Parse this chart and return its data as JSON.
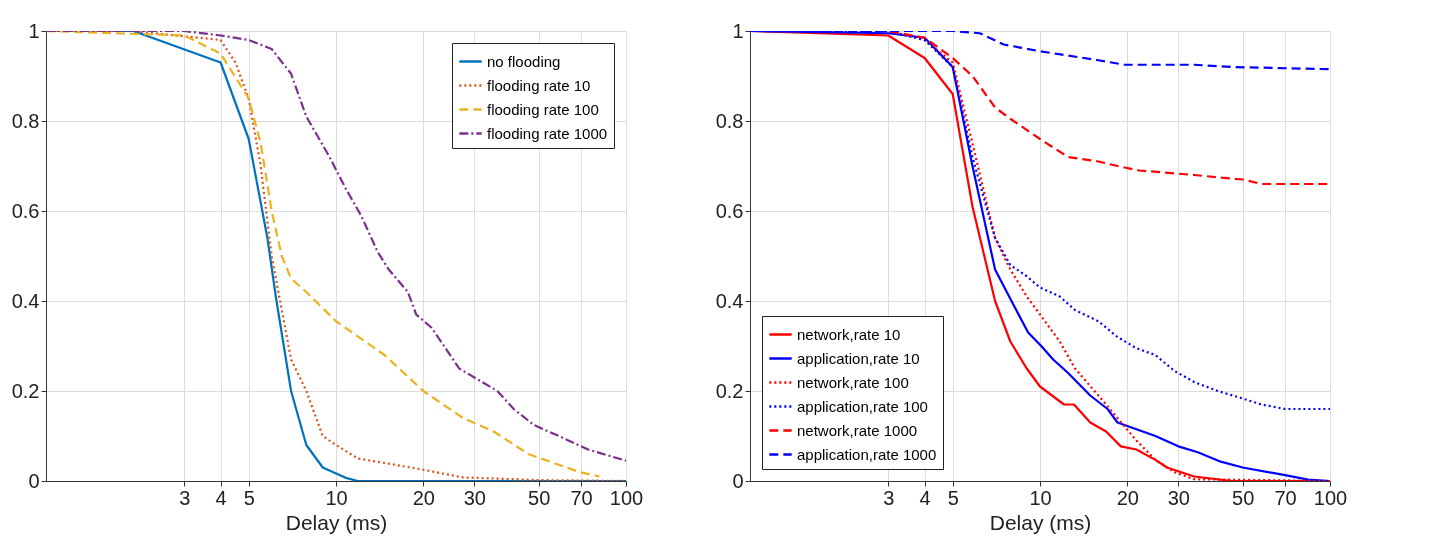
{
  "chart_data": [
    {
      "type": "line",
      "xlabel": "Delay (ms)",
      "log": "x",
      "xlim": [
        1,
        100
      ],
      "xticks": [
        3,
        4,
        5,
        10,
        20,
        30,
        50,
        70,
        100
      ],
      "ylim": [
        0,
        1
      ],
      "yticks": [
        0,
        0.2,
        0.4,
        0.6,
        0.8,
        1
      ],
      "grid": true,
      "legend": "top right",
      "series": [
        {
          "name": "no flooding",
          "color": "#0072bd",
          "line_style": "solid",
          "x": [
            1,
            2,
            4,
            5,
            5.8,
            6.2,
            7.0,
            7.9,
            9.0,
            10.8,
            11.9,
            14,
            100
          ],
          "values": [
            1,
            1,
            0.93,
            0.76,
            0.54,
            0.41,
            0.2,
            0.08,
            0.03,
            0.007,
            0,
            0,
            0
          ]
        },
        {
          "name": "flooding rate 10",
          "color": "#d95319",
          "line_style": "dotted",
          "x": [
            1,
            2,
            4,
            4.5,
            5,
            5.5,
            6,
            6.5,
            7,
            7.9,
            9.0,
            10,
            11.9,
            14.7,
            20,
            27.4,
            50,
            100
          ],
          "values": [
            1,
            1,
            0.98,
            0.93,
            0.85,
            0.7,
            0.5,
            0.38,
            0.27,
            0.2,
            0.1,
            0.08,
            0.05,
            0.04,
            0.025,
            0.008,
            0.002,
            0
          ]
        },
        {
          "name": "flooding rate 100",
          "color": "#edb120",
          "line_style": "dashed",
          "x": [
            1,
            3,
            4,
            5,
            5.5,
            6,
            6.5,
            7,
            7.9,
            10,
            14.7,
            20,
            27.4,
            35,
            46,
            69,
            81
          ],
          "values": [
            1,
            0.99,
            0.95,
            0.85,
            0.75,
            0.6,
            0.5,
            0.45,
            0.42,
            0.355,
            0.28,
            0.2,
            0.14,
            0.11,
            0.06,
            0.02,
            0.01
          ]
        },
        {
          "name": "flooding rate 1000",
          "color": "#7e2f8e",
          "line_style": "dashdot",
          "x": [
            1,
            3,
            4,
            5,
            6.0,
            7.0,
            7.9,
            9.5,
            10.8,
            12.2,
            13.9,
            15.2,
            17.7,
            18.9,
            21.4,
            26.6,
            30,
            36,
            41,
            48,
            61,
            74,
            100
          ],
          "values": [
            1,
            1,
            0.99,
            0.98,
            0.96,
            0.905,
            0.81,
            0.72,
            0.65,
            0.59,
            0.51,
            0.47,
            0.42,
            0.37,
            0.34,
            0.25,
            0.23,
            0.2,
            0.16,
            0.125,
            0.095,
            0.07,
            0.045
          ]
        }
      ]
    },
    {
      "type": "line",
      "xlabel": "Delay (ms)",
      "log": "x",
      "xlim": [
        1,
        100
      ],
      "xticks": [
        3,
        4,
        5,
        10,
        20,
        30,
        50,
        70,
        100
      ],
      "ylim": [
        0,
        1
      ],
      "yticks": [
        0,
        0.2,
        0.4,
        0.6,
        0.8,
        1
      ],
      "grid": true,
      "legend": "bottom left",
      "series": [
        {
          "name": "network,rate 10",
          "color": "#ff0000",
          "line_style": "solid",
          "x": [
            1,
            3,
            4,
            5,
            5.85,
            7.0,
            7.9,
            9.0,
            10,
            12.1,
            13.1,
            14.9,
            16.9,
            19,
            21.5,
            25,
            27.4,
            34,
            46,
            100
          ],
          "values": [
            1,
            0.99,
            0.94,
            0.86,
            0.61,
            0.4,
            0.31,
            0.25,
            0.21,
            0.17,
            0.17,
            0.13,
            0.11,
            0.077,
            0.07,
            0.047,
            0.03,
            0.01,
            0,
            0
          ]
        },
        {
          "name": "application,rate 10",
          "color": "#0000ff",
          "line_style": "solid",
          "x": [
            1,
            3,
            4,
            5,
            5.85,
            7.0,
            7.9,
            9.1,
            10.1,
            11.1,
            12.5,
            14.9,
            17.1,
            18.5,
            21.5,
            25,
            30,
            35,
            42,
            50,
            70,
            84,
            100
          ],
          "values": [
            1,
            0.995,
            0.985,
            0.92,
            0.7,
            0.47,
            0.405,
            0.33,
            0.3,
            0.27,
            0.24,
            0.19,
            0.16,
            0.13,
            0.115,
            0.1,
            0.077,
            0.064,
            0.043,
            0.03,
            0.013,
            0.003,
            0
          ]
        },
        {
          "name": "network,rate 100",
          "color": "#ff0000",
          "line_style": "dotted",
          "x": [
            1,
            3,
            4,
            5,
            5.85,
            7.0,
            7.9,
            9.0,
            10,
            11.7,
            13.2,
            15.9,
            18.5,
            21.5,
            25,
            29,
            34,
            100
          ],
          "values": [
            1,
            1,
            0.98,
            0.93,
            0.75,
            0.54,
            0.47,
            0.41,
            0.37,
            0.31,
            0.25,
            0.19,
            0.14,
            0.09,
            0.047,
            0.02,
            0.004,
            0
          ]
        },
        {
          "name": "application,rate 100",
          "color": "#0000ff",
          "line_style": "dotted",
          "x": [
            1,
            3,
            4,
            5,
            5.85,
            7.0,
            7.9,
            9.0,
            10,
            11.7,
            13.2,
            15.9,
            18.5,
            21.5,
            25,
            29,
            34,
            41,
            49,
            58,
            70,
            100
          ],
          "values": [
            1,
            1,
            0.98,
            0.92,
            0.72,
            0.54,
            0.48,
            0.455,
            0.43,
            0.41,
            0.38,
            0.355,
            0.32,
            0.295,
            0.28,
            0.245,
            0.22,
            0.2,
            0.185,
            0.17,
            0.16,
            0.16
          ]
        },
        {
          "name": "network,rate 1000",
          "color": "#ff0000",
          "line_style": "dashed",
          "x": [
            1,
            3,
            4,
            5,
            5.85,
            7.0,
            7.9,
            10,
            12.5,
            15.9,
            18.5,
            22,
            34,
            41,
            50,
            58,
            100
          ],
          "values": [
            1,
            1,
            0.985,
            0.94,
            0.9,
            0.83,
            0.805,
            0.76,
            0.72,
            0.71,
            0.7,
            0.69,
            0.68,
            0.675,
            0.67,
            0.66,
            0.66
          ]
        },
        {
          "name": "application,rate 1000",
          "color": "#0000ff",
          "line_style": "dashed",
          "x": [
            1,
            5,
            6.2,
            7.5,
            10,
            15.9,
            19.6,
            34,
            46,
            100
          ],
          "values": [
            1,
            1,
            0.995,
            0.97,
            0.955,
            0.935,
            0.925,
            0.925,
            0.92,
            0.915
          ]
        }
      ]
    }
  ]
}
